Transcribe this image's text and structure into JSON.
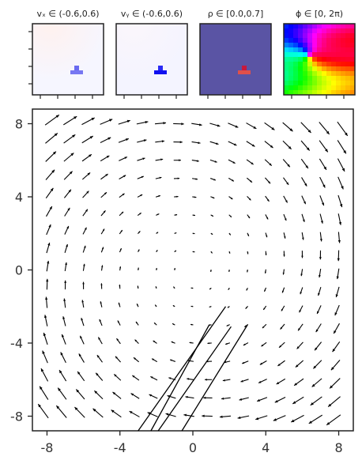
{
  "panels": [
    {
      "title": "vₓ ∈ (-0.6,0.6)",
      "colormap": "bwr",
      "range": [
        -0.6,
        0.6
      ],
      "highlight": [
        "#6a6af0",
        "#7777f2"
      ]
    },
    {
      "title": "vᵧ ∈ (-0.6,0.6)",
      "colormap": "bwr",
      "range": [
        -0.6,
        0.6
      ],
      "highlight": [
        "#2a2af5",
        "#1010f0"
      ]
    },
    {
      "title": "ρ ∈ [0.0,0.7]",
      "colormap": "density",
      "range": [
        0.0,
        0.7
      ],
      "background": "#5a54a4",
      "highlight": [
        "#c8183c",
        "#e0504a"
      ]
    },
    {
      "title": "ϕ ∈ [0, 2π)",
      "colormap": "hsv",
      "range": [
        0,
        6.2832
      ]
    }
  ],
  "chart_data": {
    "type": "quiver",
    "title": "",
    "xlabel": "",
    "ylabel": "",
    "xlim": [
      -8.8,
      8.8
    ],
    "ylim": [
      -8.8,
      8.8
    ],
    "xticks": [
      -8,
      -4,
      0,
      4,
      8
    ],
    "yticks": [
      -8,
      -4,
      0,
      4,
      8
    ],
    "xtick_labels": [
      "-8",
      "-4",
      "0",
      "4",
      "8"
    ],
    "ytick_labels": [
      "-8",
      "-4",
      "0",
      "4",
      "8"
    ],
    "grid": false,
    "arrow_grid": {
      "start": -8,
      "stop": 8,
      "count": 17
    },
    "center": [
      0,
      0
    ],
    "rotation_strength": 0.45,
    "arrow_color": "#000000",
    "lines": [
      {
        "x": [
          -3.0,
          1.8
        ],
        "y": [
          -8.8,
          -2.0
        ]
      },
      {
        "x": [
          -2.3,
          0.9
        ],
        "y": [
          -8.8,
          -3.0
        ]
      },
      {
        "x": [
          -1.9,
          2.1
        ],
        "y": [
          -8.8,
          -3.1
        ]
      },
      {
        "x": [
          -0.6,
          3.0
        ],
        "y": [
          -8.8,
          -3.0
        ]
      }
    ]
  }
}
